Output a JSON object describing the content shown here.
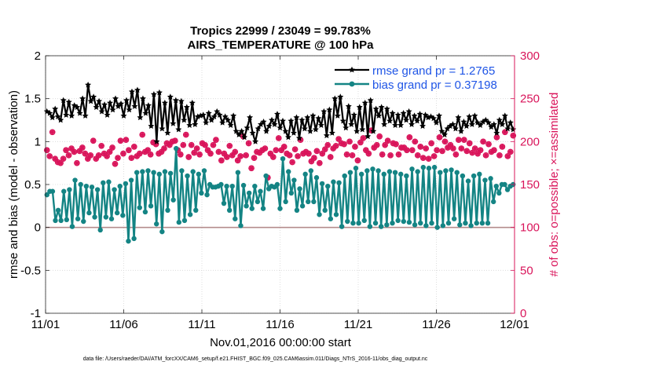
{
  "colors": {
    "rmse": "#000000",
    "bias": "#148484",
    "obs": "#d9145a",
    "zero_line": "#b48c8c",
    "legend_text": "#1f55e6"
  },
  "chart_data": {
    "type": "line",
    "title": "Tropics 22999 / 23049 = 99.783%",
    "subtitle": "AIRS_TEMPERATURE @ 100 hPa",
    "xlabel": "Nov.01,2016 00:00:00 start",
    "ylabel": "rmse and bias (model - observation)",
    "y2label": "# of obs: o=possible; ×=assimilated",
    "footnote": "data file: /Users/raeder/DAI/ATM_forcXX/CAM6_setup/f.e21.FHIST_BGC.f09_025.CAM6assim.011/Diags_NTrS_2016-11/obs_diag_output.nc",
    "xlim": [
      0,
      30
    ],
    "ylim": [
      -1,
      2
    ],
    "y2lim": [
      0,
      300
    ],
    "x_tick_labels": [
      "11/01",
      "11/06",
      "11/11",
      "11/16",
      "11/21",
      "11/26",
      "12/01"
    ],
    "x_tick_values": [
      0,
      5,
      10,
      15,
      20,
      25,
      30
    ],
    "y_tick_labels": [
      "2",
      "1.5",
      "1",
      "0.5",
      "0",
      "-0.5",
      "-1"
    ],
    "y_tick_values": [
      2,
      1.5,
      1,
      0.5,
      0,
      -0.5,
      -1
    ],
    "y2_tick_labels": [
      "300",
      "250",
      "200",
      "150",
      "100",
      "50",
      "0"
    ],
    "y2_tick_values": [
      300,
      250,
      200,
      150,
      100,
      50,
      0
    ],
    "legend": {
      "position": "top-right",
      "entries": [
        "rmse grand pr = 1.2765",
        "bias grand pr = 0.37198"
      ]
    },
    "series": [
      {
        "name": "rmse",
        "axis": "left",
        "marker": "star",
        "values": [
          1.35,
          1.33,
          1.28,
          1.38,
          1.29,
          1.25,
          1.48,
          1.31,
          1.46,
          1.3,
          1.42,
          1.4,
          1.33,
          1.5,
          1.3,
          1.66,
          1.47,
          1.52,
          1.4,
          1.47,
          1.35,
          1.43,
          1.31,
          1.45,
          1.37,
          1.5,
          1.41,
          1.44,
          1.3,
          1.48,
          1.37,
          1.58,
          1.41,
          1.6,
          1.28,
          1.5,
          1.33,
          1.42,
          1.18,
          1.55,
          1.0,
          1.57,
          1.15,
          1.45,
          1.1,
          1.52,
          1.21,
          1.48,
          1.14,
          1.47,
          1.25,
          1.4,
          1.19,
          1.45,
          1.2,
          1.29,
          1.3,
          1.31,
          1.22,
          1.33,
          1.25,
          1.29,
          1.35,
          1.31,
          1.22,
          1.29,
          1.25,
          1.19,
          1.3,
          1.12,
          1.08,
          1.12,
          1.05,
          1.16,
          1.28,
          1.1,
          1.0,
          1.15,
          1.2,
          1.23,
          1.12,
          1.18,
          1.25,
          1.2,
          1.32,
          1.16,
          1.24,
          1.12,
          1.05,
          1.24,
          1.1,
          1.28,
          1.04,
          1.25,
          1.15,
          1.28,
          1.12,
          1.3,
          1.14,
          1.27,
          1.19,
          1.35,
          1.07,
          1.37,
          1.1,
          1.5,
          1.3,
          1.52,
          1.24,
          1.16,
          1.41,
          1.2,
          1.31,
          1.12,
          1.4,
          1.14,
          1.45,
          1.06,
          1.48,
          1.12,
          1.38,
          1.3,
          1.4,
          1.2,
          1.38,
          1.24,
          1.33,
          1.19,
          1.31,
          1.19,
          1.33,
          1.25,
          1.35,
          1.2,
          1.3,
          1.24,
          1.32,
          1.18,
          1.31,
          1.28,
          1.29,
          1.27,
          1.22,
          1.3,
          1.12,
          1.08,
          1.15,
          1.18,
          1.2,
          1.15,
          1.28,
          1.12,
          1.23,
          1.18,
          1.29,
          1.2,
          1.3,
          1.22,
          1.19,
          1.23,
          1.25,
          1.22,
          1.17,
          1.2,
          1.1,
          1.25,
          1.2,
          1.3,
          1.15,
          1.22,
          1.14
        ]
      },
      {
        "name": "bias",
        "axis": "left",
        "marker": "circle",
        "values": [
          0.38,
          0.42,
          0.42,
          0.08,
          0.2,
          0.08,
          0.42,
          0.09,
          0.44,
          0.01,
          0.55,
          0.1,
          0.5,
          0.07,
          0.48,
          0.17,
          0.47,
          0.12,
          0.44,
          -0.03,
          0.52,
          0.12,
          0.53,
          0.1,
          0.44,
          0.17,
          0.48,
          0.14,
          0.51,
          -0.16,
          0.55,
          -0.13,
          0.64,
          0.23,
          0.65,
          0.18,
          0.66,
          0.25,
          0.64,
          0.04,
          0.62,
          -0.05,
          0.65,
          0.2,
          0.63,
          0.32,
          0.92,
          0.06,
          0.66,
          0.08,
          0.6,
          0.15,
          0.65,
          0.2,
          0.62,
          0.4,
          0.66,
          0.38,
          0.5,
          0.47,
          0.47,
          0.48,
          0.5,
          0.28,
          0.48,
          0.2,
          0.48,
          0.1,
          0.64,
          0.02,
          0.49,
          0.25,
          0.4,
          0.22,
          0.48,
          0.3,
          0.42,
          0.22,
          0.6,
          0.45,
          0.48,
          0.47,
          0.5,
          0.22,
          0.8,
          0.3,
          0.65,
          0.4,
          0.55,
          0.2,
          0.45,
          0.25,
          0.62,
          0.3,
          0.66,
          0.3,
          0.58,
          0.15,
          0.51,
          0.2,
          0.48,
          0.1,
          0.53,
          0.15,
          0.52,
          0.01,
          0.6,
          0.07,
          0.64,
          0.05,
          0.69,
          0.05,
          0.62,
          0.08,
          0.66,
          0.01,
          0.68,
          0.05,
          0.66,
          0.01,
          0.62,
          0.03,
          0.65,
          0.05,
          0.64,
          0.08,
          0.62,
          0.07,
          0.6,
          0.06,
          0.68,
          0.03,
          0.65,
          0.05,
          0.7,
          0.02,
          0.69,
          0.05,
          0.7,
          0.0,
          0.64,
          0.02,
          0.66,
          0.05,
          0.67,
          0.1,
          0.64,
          0.03,
          0.6,
          0.05,
          0.54,
          0.02,
          0.6,
          0.05,
          0.62,
          0.05,
          0.55,
          0.05,
          0.57,
          0.3,
          0.48,
          0.4,
          0.5,
          0.5,
          0.44,
          0.48,
          0.5
        ]
      },
      {
        "name": "obs possible",
        "axis": "right",
        "marker": "circle",
        "values": [
          190,
          183,
          211,
          180,
          176,
          175,
          180,
          190,
          184,
          192,
          188,
          175,
          189,
          193,
          186,
          180,
          184,
          201,
          180,
          184,
          195,
          186,
          183,
          188,
          193,
          174,
          181,
          201,
          186,
          202,
          190,
          181,
          194,
          183,
          186,
          208,
          188,
          190,
          185,
          199,
          197,
          186,
          188,
          192,
          198,
          196,
          200,
          201,
          190,
          185,
          196,
          208,
          182,
          196,
          187,
          192,
          185,
          198,
          196,
          190,
          186,
          196,
          202,
          188,
          178,
          186,
          182,
          195,
          184,
          188,
          178,
          183,
          206,
          184,
          198,
          169,
          181,
          188,
          187,
          190,
          192,
          158,
          186,
          182,
          190,
          204,
          190,
          194,
          186,
          184,
          176,
          191,
          183,
          202,
          186,
          188,
          186,
          177,
          181,
          189,
          175,
          186,
          191,
          196,
          182,
          192,
          195,
          203,
          198,
          197,
          185,
          200,
          184,
          194,
          178,
          199,
          204,
          190,
          186,
          213,
          193,
          196,
          206,
          185,
          196,
          201,
          184,
          198,
          197,
          185,
          193,
          193,
          190,
          205,
          190,
          200,
          184,
          194,
          181,
          192,
          180,
          198,
          183,
          190,
          205,
          189,
          200,
          193,
          196,
          192,
          185,
          202,
          192,
          202,
          189,
          198,
          187,
          192,
          186,
          190,
          200,
          184,
          197,
          188,
          190,
          205,
          184,
          194,
          211,
          183,
          188,
          207
        ]
      },
      {
        "name": "obs assimilated",
        "axis": "right",
        "marker": "asterisk",
        "values": [
          190,
          183,
          211,
          180,
          176,
          175,
          180,
          190,
          184,
          192,
          188,
          175,
          189,
          193,
          186,
          180,
          184,
          201,
          180,
          184,
          195,
          186,
          183,
          188,
          193,
          174,
          181,
          201,
          186,
          202,
          190,
          181,
          194,
          183,
          186,
          208,
          188,
          190,
          185,
          199,
          197,
          186,
          188,
          192,
          198,
          196,
          200,
          201,
          190,
          185,
          196,
          208,
          182,
          196,
          187,
          192,
          185,
          198,
          196,
          190,
          186,
          196,
          202,
          188,
          178,
          186,
          182,
          195,
          184,
          188,
          178,
          183,
          206,
          184,
          198,
          169,
          181,
          188,
          187,
          190,
          192,
          158,
          186,
          182,
          190,
          204,
          190,
          194,
          186,
          184,
          176,
          191,
          183,
          202,
          186,
          188,
          186,
          177,
          181,
          189,
          175,
          186,
          191,
          196,
          182,
          192,
          195,
          203,
          198,
          197,
          185,
          200,
          184,
          194,
          178,
          199,
          204,
          190,
          186,
          213,
          193,
          196,
          206,
          185,
          196,
          201,
          184,
          198,
          197,
          185,
          193,
          193,
          190,
          205,
          190,
          200,
          184,
          194,
          181,
          192,
          180,
          198,
          183,
          190,
          205,
          189,
          200,
          193,
          196,
          192,
          185,
          202,
          192,
          202,
          189,
          198,
          187,
          192,
          186,
          190,
          200,
          184,
          197,
          188,
          190,
          205,
          184,
          194,
          211,
          183,
          188,
          207
        ]
      }
    ]
  }
}
